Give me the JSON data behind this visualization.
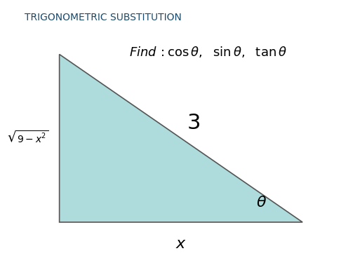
{
  "title": "TRIGONOMETRIC SUBSTITUTION",
  "title_bg_color": "#a8d4e8",
  "title_fontsize": 10,
  "triangle_fill_color": "#aedcdc",
  "triangle_edge_color": "#555555",
  "bg_color": "#ffffff",
  "lb": [
    0.13,
    0.1
  ],
  "lt": [
    0.13,
    0.87
  ],
  "rb": [
    0.9,
    0.1
  ],
  "label_hypotenuse": "3",
  "label_vertical": "$\\sqrt{9-x^2}$",
  "label_horizontal": "$x$",
  "label_angle": "$\\theta$",
  "find_text": "$\\mathit{Find}\\,:\\cos\\theta,\\ \\ \\sin\\theta,\\ \\ \\tan\\theta$",
  "hyp_label_fontsize": 22,
  "side_label_fontsize": 10,
  "horiz_label_fontsize": 16,
  "theta_label_fontsize": 16,
  "find_fontsize": 13
}
